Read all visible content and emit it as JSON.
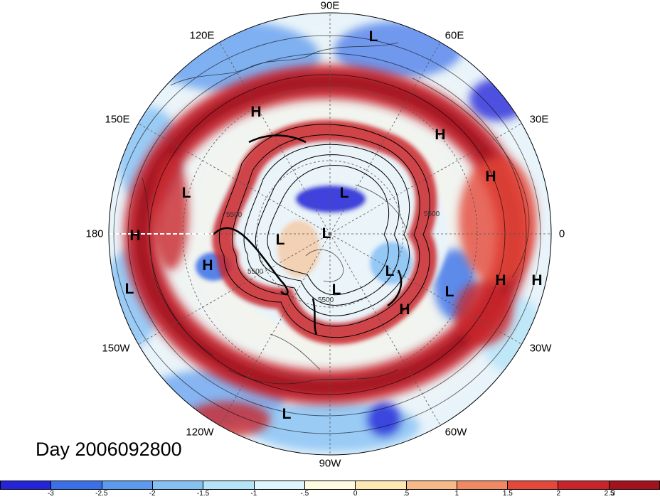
{
  "map": {
    "projection": "north polar stereographic",
    "longitude_labels": [
      {
        "lon": 90,
        "text": "90E"
      },
      {
        "lon": 60,
        "text": "60E"
      },
      {
        "lon": 30,
        "text": "30E"
      },
      {
        "lon": 0,
        "text": "0"
      },
      {
        "lon": -30,
        "text": "30W"
      },
      {
        "lon": -60,
        "text": "60W"
      },
      {
        "lon": -90,
        "text": "90W"
      },
      {
        "lon": -120,
        "text": "120W"
      },
      {
        "lon": -150,
        "text": "150W"
      },
      {
        "lon": 180,
        "text": "180"
      },
      {
        "lon": 150,
        "text": "150E"
      },
      {
        "lon": 120,
        "text": "120E"
      }
    ],
    "pressure_markers": [
      "L",
      "H",
      "H",
      "H",
      "L",
      "L",
      "L",
      "H",
      "L",
      "L",
      "L",
      "H",
      "H",
      "H",
      "L",
      "L",
      "H",
      "L",
      "L",
      "L"
    ],
    "contour_labels": [
      "5500",
      "5500",
      "5500",
      "5500"
    ],
    "date_label": "Day 2006092800"
  },
  "colorbar": {
    "tick_labels": [
      "-3",
      "-2.5",
      "-2",
      "-1.5",
      "-1",
      "-.5",
      "0",
      ".5",
      "1",
      "1.5",
      "2",
      "2.5",
      "3"
    ],
    "colors": [
      "#2424d8",
      "#3a6fe8",
      "#5b9aee",
      "#86c1f4",
      "#b5e3f7",
      "#ddf5fb",
      "#fffbe0",
      "#fde7b3",
      "#f6b987",
      "#f08963",
      "#e5483a",
      "#c9242c",
      "#a1111e"
    ]
  }
}
